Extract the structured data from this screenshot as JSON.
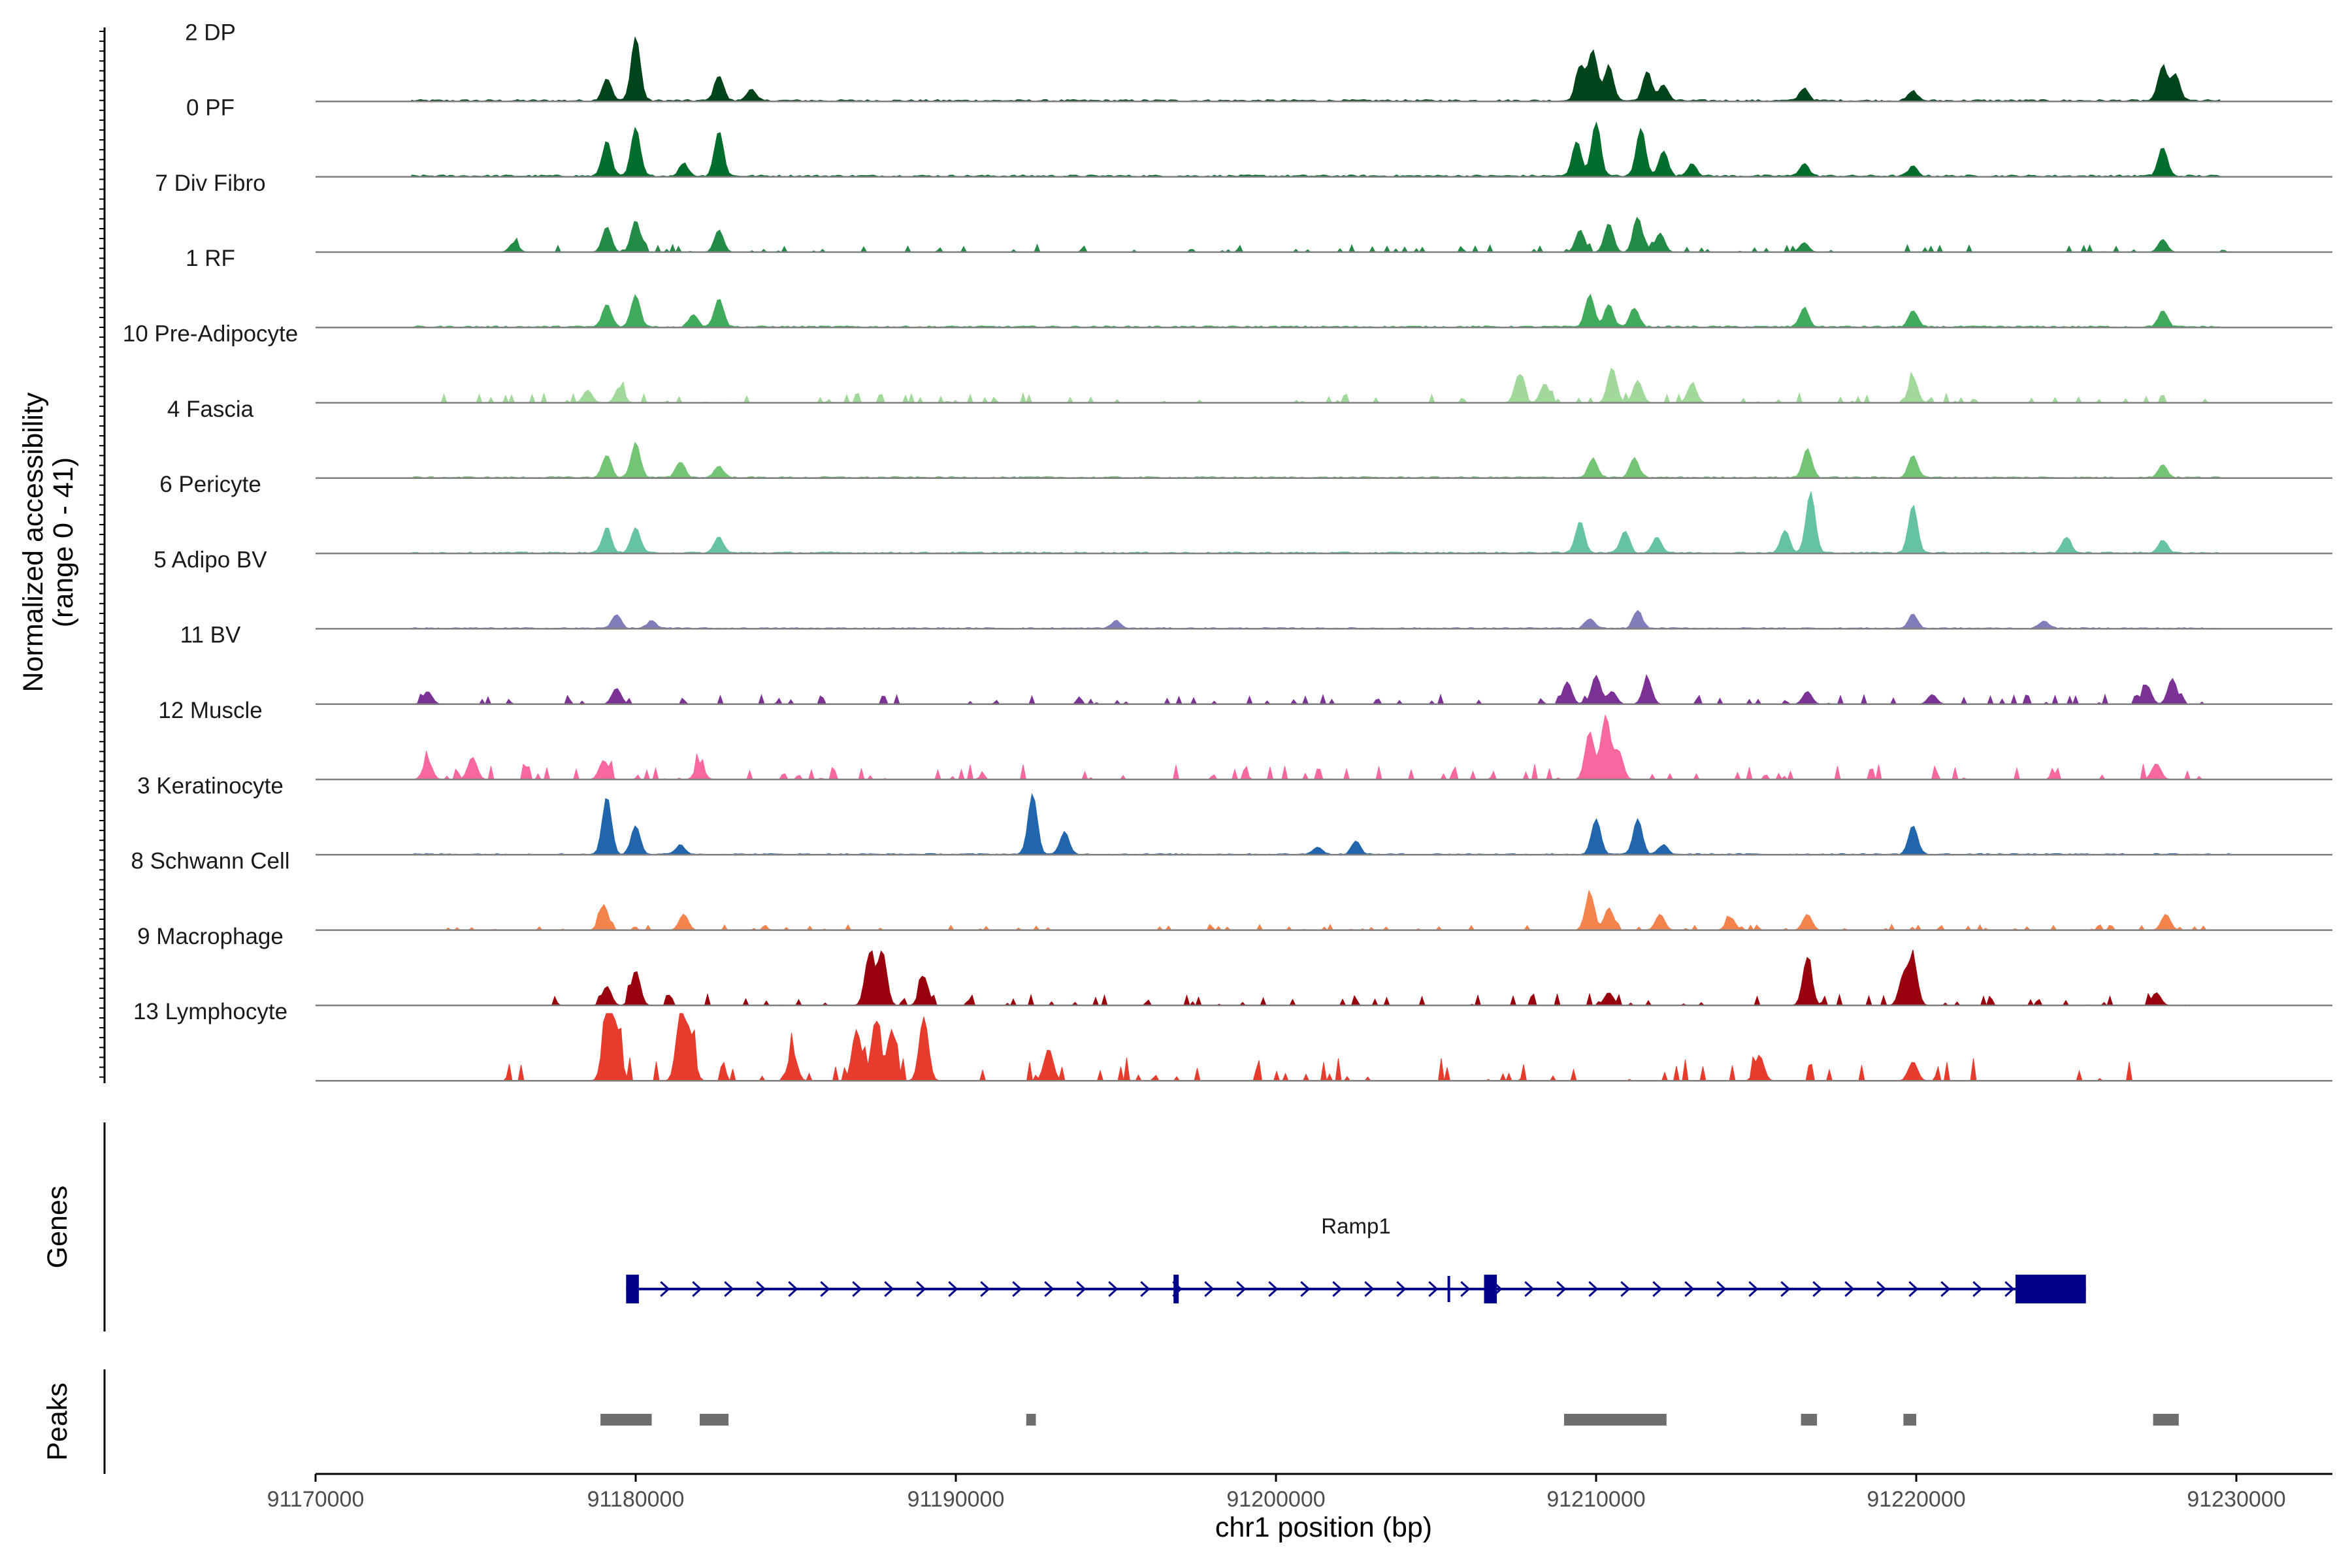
{
  "chart_data": {
    "type": "area",
    "title": "",
    "ylabel_line1": "Normalized accessibility",
    "ylabel_line2": "(range 0 - 41)",
    "xlabel": "chr1 position (bp)",
    "xlim": [
      91170000,
      91233000
    ],
    "ylim": [
      0,
      41
    ],
    "x_ticks": [
      91170000,
      91180000,
      91190000,
      91200000,
      91210000,
      91220000,
      91230000
    ],
    "x_tick_labels": [
      "91170000",
      "91180000",
      "91190000",
      "91200000",
      "91210000",
      "91220000",
      "91230000"
    ],
    "genes_label": "Genes",
    "peaks_label": "Peaks",
    "series": [
      {
        "name": "2 DP",
        "color": "#00441b",
        "start": 91173000,
        "end": 91229500,
        "noise": 0.03,
        "dense": true,
        "peaks": [
          [
            91179100,
            0.35
          ],
          [
            91180000,
            1.0
          ],
          [
            91182600,
            0.4
          ],
          [
            91183600,
            0.18
          ],
          [
            91209500,
            0.55
          ],
          [
            91209900,
            0.8
          ],
          [
            91210400,
            0.55
          ],
          [
            91211600,
            0.45
          ],
          [
            91212100,
            0.25
          ],
          [
            91216500,
            0.2
          ],
          [
            91219900,
            0.15
          ],
          [
            91227700,
            0.55
          ],
          [
            91228100,
            0.4
          ]
        ]
      },
      {
        "name": "0 PF",
        "color": "#006d2c",
        "start": 91173000,
        "end": 91229500,
        "noise": 0.03,
        "dense": true,
        "peaks": [
          [
            91179100,
            0.55
          ],
          [
            91180000,
            0.75
          ],
          [
            91182600,
            0.7
          ],
          [
            91181500,
            0.2
          ],
          [
            91209400,
            0.55
          ],
          [
            91210000,
            0.85
          ],
          [
            91211400,
            0.75
          ],
          [
            91212100,
            0.4
          ],
          [
            91213000,
            0.2
          ],
          [
            91216500,
            0.2
          ],
          [
            91219900,
            0.15
          ],
          [
            91227700,
            0.45
          ]
        ]
      },
      {
        "name": "7 Div Fibro",
        "color": "#238b45",
        "start": 91175000,
        "end": 91229800,
        "noise": 0.04,
        "dense": false,
        "peaks": [
          [
            91179100,
            0.4
          ],
          [
            91180000,
            0.5
          ],
          [
            91182600,
            0.35
          ],
          [
            91176200,
            0.15
          ],
          [
            91209500,
            0.35
          ],
          [
            91210400,
            0.45
          ],
          [
            91211300,
            0.55
          ],
          [
            91212000,
            0.3
          ],
          [
            91216500,
            0.15
          ],
          [
            91227700,
            0.2
          ]
        ]
      },
      {
        "name": "1 RF",
        "color": "#41ab5d",
        "start": 91173000,
        "end": 91229500,
        "noise": 0.025,
        "dense": true,
        "peaks": [
          [
            91179100,
            0.35
          ],
          [
            91180000,
            0.5
          ],
          [
            91182600,
            0.45
          ],
          [
            91181800,
            0.2
          ],
          [
            91209800,
            0.5
          ],
          [
            91210400,
            0.35
          ],
          [
            91211200,
            0.3
          ],
          [
            91216500,
            0.3
          ],
          [
            91219900,
            0.25
          ],
          [
            91227700,
            0.25
          ]
        ]
      },
      {
        "name": "10 Pre-Adipocyte",
        "color": "#a1d99b",
        "start": 91173000,
        "end": 91229700,
        "noise": 0.05,
        "dense": false,
        "peaks": [
          [
            91178500,
            0.2
          ],
          [
            91179500,
            0.25
          ],
          [
            91207600,
            0.45
          ],
          [
            91208400,
            0.3
          ],
          [
            91210500,
            0.55
          ],
          [
            91211300,
            0.35
          ],
          [
            91213000,
            0.3
          ],
          [
            91219900,
            0.4
          ]
        ]
      },
      {
        "name": "4 Fascia",
        "color": "#74c476",
        "start": 91173000,
        "end": 91229500,
        "noise": 0.025,
        "dense": true,
        "peaks": [
          [
            91179100,
            0.35
          ],
          [
            91180000,
            0.55
          ],
          [
            91181400,
            0.25
          ],
          [
            91182600,
            0.18
          ],
          [
            91209900,
            0.3
          ],
          [
            91211200,
            0.3
          ],
          [
            91216600,
            0.45
          ],
          [
            91219900,
            0.35
          ],
          [
            91227700,
            0.2
          ]
        ]
      },
      {
        "name": "6 Pericyte",
        "color": "#66c2a4",
        "start": 91173000,
        "end": 91229500,
        "noise": 0.025,
        "dense": true,
        "peaks": [
          [
            91179100,
            0.4
          ],
          [
            91180000,
            0.4
          ],
          [
            91182600,
            0.25
          ],
          [
            91209500,
            0.5
          ],
          [
            91210900,
            0.35
          ],
          [
            91211900,
            0.25
          ],
          [
            91215900,
            0.35
          ],
          [
            91216700,
            0.95
          ],
          [
            91219900,
            0.75
          ],
          [
            91224700,
            0.25
          ],
          [
            91227700,
            0.2
          ]
        ]
      },
      {
        "name": "5 Adipo BV",
        "color": "#807dba",
        "start": 91173000,
        "end": 91229500,
        "noise": 0.02,
        "dense": true,
        "peaks": [
          [
            91179400,
            0.22
          ],
          [
            91180500,
            0.12
          ],
          [
            91195000,
            0.12
          ],
          [
            91209800,
            0.15
          ],
          [
            91211300,
            0.28
          ],
          [
            91219900,
            0.22
          ],
          [
            91224000,
            0.12
          ]
        ]
      },
      {
        "name": "11 BV",
        "color": "#7b3294",
        "start": 91173000,
        "end": 91229000,
        "noise": 0.05,
        "dense": false,
        "peaks": [
          [
            91173500,
            0.2
          ],
          [
            91179400,
            0.25
          ],
          [
            91209100,
            0.35
          ],
          [
            91210000,
            0.45
          ],
          [
            91211600,
            0.4
          ],
          [
            91210500,
            0.2
          ],
          [
            91216600,
            0.2
          ],
          [
            91220500,
            0.15
          ],
          [
            91227200,
            0.3
          ],
          [
            91228000,
            0.4
          ]
        ]
      },
      {
        "name": "12 Muscle",
        "color": "#f768a1",
        "start": 91173000,
        "end": 91230000,
        "noise": 0.08,
        "dense": false,
        "peaks": [
          [
            91173500,
            0.3
          ],
          [
            91174900,
            0.35
          ],
          [
            91179000,
            0.3
          ],
          [
            91182000,
            0.25
          ],
          [
            91209800,
            0.75
          ],
          [
            91210300,
            1.0
          ],
          [
            91210700,
            0.45
          ],
          [
            91227500,
            0.25
          ]
        ]
      },
      {
        "name": "3 Keratinocyte",
        "color": "#2166ac",
        "start": 91173000,
        "end": 91230000,
        "noise": 0.02,
        "dense": true,
        "peaks": [
          [
            91179100,
            0.9
          ],
          [
            91180000,
            0.45
          ],
          [
            91181400,
            0.15
          ],
          [
            91192400,
            0.95
          ],
          [
            91193400,
            0.35
          ],
          [
            91201300,
            0.12
          ],
          [
            91202500,
            0.2
          ],
          [
            91210000,
            0.55
          ],
          [
            91211300,
            0.55
          ],
          [
            91212100,
            0.15
          ],
          [
            91219900,
            0.45
          ]
        ]
      },
      {
        "name": "8 Schwann Cell",
        "color": "#f4834e",
        "start": 91173500,
        "end": 91229500,
        "noise": 0.03,
        "dense": false,
        "peaks": [
          [
            91179000,
            0.4
          ],
          [
            91181500,
            0.25
          ],
          [
            91209800,
            0.55
          ],
          [
            91210400,
            0.35
          ],
          [
            91212000,
            0.25
          ],
          [
            91214200,
            0.2
          ],
          [
            91216600,
            0.25
          ],
          [
            91227800,
            0.25
          ]
        ]
      },
      {
        "name": "9 Macrophage",
        "color": "#99000d",
        "start": 91176000,
        "end": 91230000,
        "noise": 0.06,
        "dense": false,
        "peaks": [
          [
            91179100,
            0.3
          ],
          [
            91180000,
            0.55
          ],
          [
            91187300,
            0.8
          ],
          [
            91187700,
            0.85
          ],
          [
            91189000,
            0.45
          ],
          [
            91210400,
            0.2
          ],
          [
            91216600,
            0.75
          ],
          [
            91219600,
            0.45
          ],
          [
            91219900,
            0.7
          ],
          [
            91227500,
            0.2
          ]
        ]
      },
      {
        "name": "13 Lymphocyte",
        "color": "#e63c2e",
        "start": 91175500,
        "end": 91227000,
        "noise": 0.12,
        "dense": false,
        "peaks": [
          [
            91179100,
            1.0
          ],
          [
            91179400,
            0.8
          ],
          [
            91181400,
            1.0
          ],
          [
            91181700,
            0.7
          ],
          [
            91184900,
            0.45
          ],
          [
            91186900,
            0.8
          ],
          [
            91187500,
            0.95
          ],
          [
            91188000,
            0.8
          ],
          [
            91189000,
            1.0
          ],
          [
            91192900,
            0.5
          ],
          [
            91215100,
            0.4
          ],
          [
            91219900,
            0.3
          ]
        ]
      }
    ],
    "gene": {
      "name": "Ramp1",
      "color": "#00008b",
      "start": 91179700,
      "end": 91225300,
      "exons": [
        [
          91179700,
          91180100
        ],
        [
          91196800,
          91196900
        ],
        [
          91206500,
          91206900
        ],
        [
          91223100,
          91225300
        ]
      ],
      "marker": 91205400
    },
    "peaks_regions": [
      [
        91178900,
        91180500
      ],
      [
        91182000,
        91182900
      ],
      [
        91192200,
        91192500
      ],
      [
        91209000,
        91212200
      ],
      [
        91216400,
        91216900
      ],
      [
        91219600,
        91220000
      ],
      [
        91227400,
        91228200
      ]
    ],
    "peaks_color": "#6e6e6e",
    "axis_color": "#000000",
    "baseline_color": "#7f7f7f"
  }
}
